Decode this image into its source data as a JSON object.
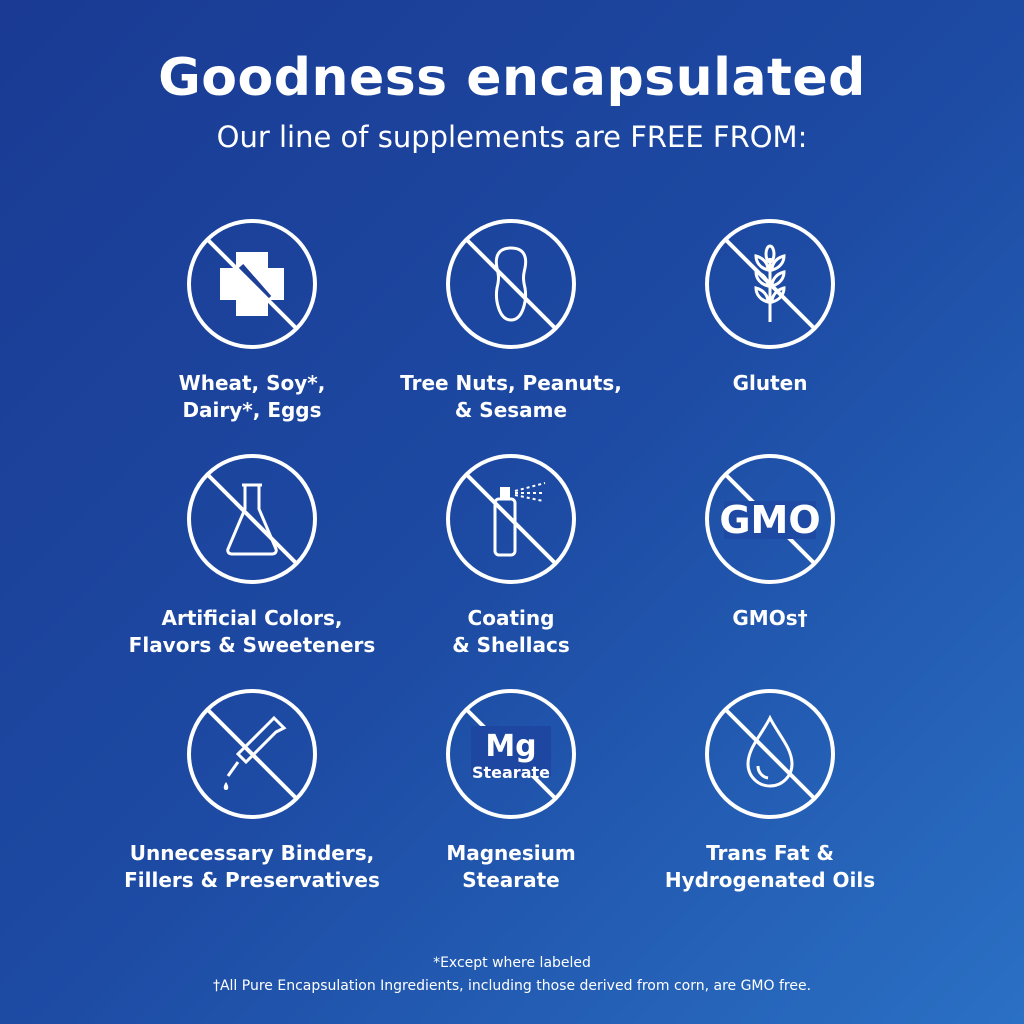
{
  "header": {
    "title": "Goodness encapsulated",
    "subtitle": "Our line of supplements are FREE FROM:"
  },
  "items": [
    {
      "icon": "allergen-cross-fork-icon",
      "line1": "Wheat, Soy*,",
      "line2": "Dairy*, Eggs"
    },
    {
      "icon": "peanut-icon",
      "line1": "Tree Nuts, Peanuts,",
      "line2": "& Sesame"
    },
    {
      "icon": "wheat-icon",
      "line1": "Gluten",
      "line2": ""
    },
    {
      "icon": "flask-icon",
      "line1": "Artificial Colors,",
      "line2": "Flavors & Sweeteners"
    },
    {
      "icon": "spray-can-icon",
      "line1": "Coating",
      "line2": "& Shellacs"
    },
    {
      "icon": "gmo-icon",
      "icon_text": "GMO",
      "line1": "GMOs†",
      "line2": ""
    },
    {
      "icon": "dropper-icon",
      "line1": "Unnecessary Binders,",
      "line2": "Fillers & Preservatives"
    },
    {
      "icon": "mg-stearate-icon",
      "icon_text": "Mg",
      "icon_subtext": "Stearate",
      "line1": "Magnesium",
      "line2": "Stearate"
    },
    {
      "icon": "oil-drop-icon",
      "line1": "Trans Fat &",
      "line2": "Hydrogenated Oils"
    }
  ],
  "footnotes": {
    "note1": "*Except where labeled",
    "note2": "†All Pure Encapsulation Ingredients, including those derived from corn, are GMO free."
  },
  "colors": {
    "background_start": "#1a3a93",
    "background_end": "#2a70c4",
    "foreground": "#ffffff"
  }
}
